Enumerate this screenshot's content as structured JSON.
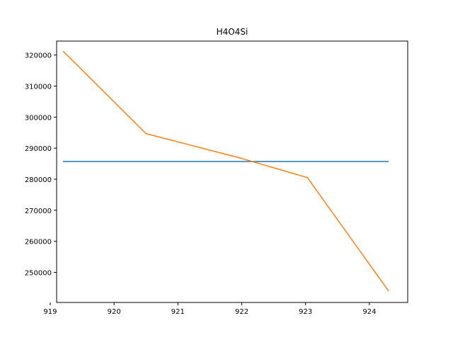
{
  "chart_data": {
    "type": "line",
    "title": "H4O4Si",
    "xlabel": "",
    "ylabel": "",
    "xlim": [
      919.1,
      924.6
    ],
    "ylim": [
      240300,
      324500
    ],
    "xticks": [
      919,
      920,
      921,
      922,
      923,
      924
    ],
    "yticks": [
      250000,
      260000,
      270000,
      280000,
      290000,
      300000,
      310000,
      320000
    ],
    "grid": false,
    "series": [
      {
        "name": "series-1",
        "color": "#1f77b4",
        "x": [
          919.2,
          924.3
        ],
        "y": [
          285700,
          285700
        ]
      },
      {
        "name": "series-2",
        "color": "#ff7f0e",
        "x": [
          919.2,
          920.5,
          922.0,
          923.03,
          924.3
        ],
        "y": [
          321300,
          294700,
          286700,
          280500,
          244000
        ]
      }
    ]
  }
}
